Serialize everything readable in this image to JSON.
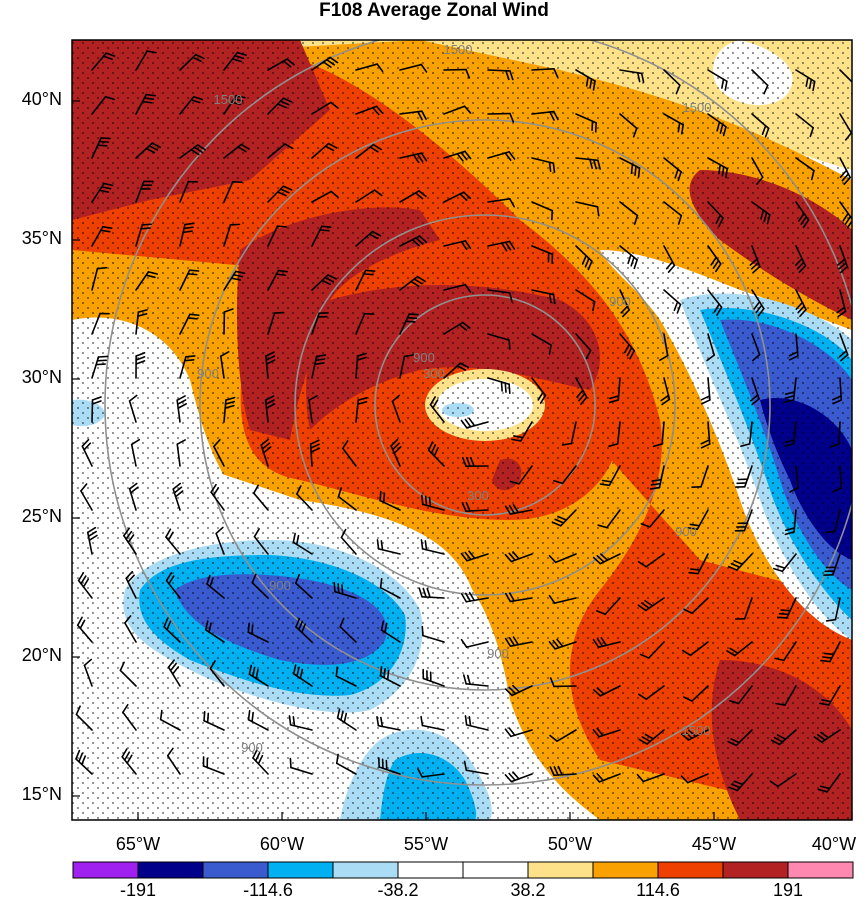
{
  "title": "F108 Average Zonal Wind",
  "latitude_labels": [
    "40°N",
    "35°N",
    "30°N",
    "25°N",
    "20°N",
    "15°N"
  ],
  "longitude_labels": [
    "65°W",
    "60°W",
    "55°W",
    "50°W",
    "45°W",
    "40°W"
  ],
  "colorbar": {
    "colors": [
      "#a020f0",
      "#00008b",
      "#3a5bd0",
      "#00b0f0",
      "#aaddf5",
      "#ffffff",
      "#ffffff",
      "#fde28a",
      "#f8a100",
      "#ee4000",
      "#b22222",
      "#ff88b0"
    ],
    "labels": [
      "-191",
      "-114.6",
      "-38.2",
      "38.2",
      "114.6",
      "191"
    ]
  },
  "contour_labels": [
    "1500",
    "1500",
    "1500",
    "900",
    "900",
    "900",
    "900",
    "900",
    "300",
    "300",
    "900",
    "900",
    "1500"
  ],
  "map_extent": {
    "lon": [
      -67,
      -40
    ],
    "lat": [
      14.5,
      42.5
    ]
  }
}
